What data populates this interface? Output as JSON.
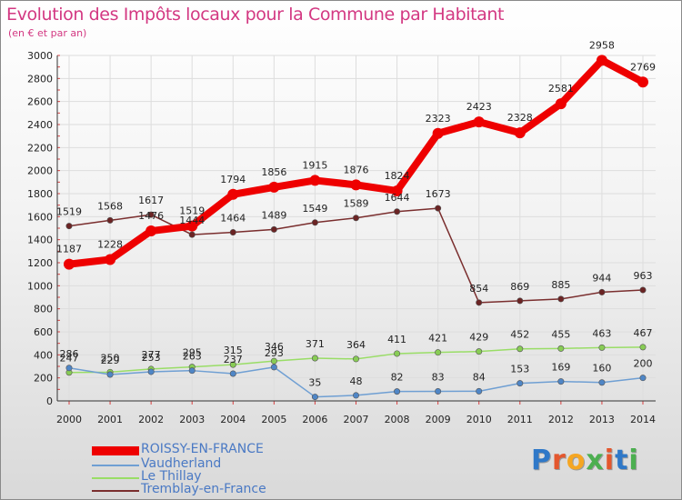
{
  "title": "Evolution des Impôts locaux pour la Commune par Habitant",
  "subtitle": "(en € et par an)",
  "logo_text": "Proxiti",
  "colors": {
    "roissy": "#ee0000",
    "vaudherland": "#6f9fd3",
    "thillay": "#99dd66",
    "tremblay": "#7a2e2e",
    "title": "#d33882"
  },
  "chart_data": {
    "type": "line",
    "title": "Evolution des Impôts locaux pour la Commune par Habitant",
    "subtitle": "(en € et par an)",
    "xlabel": "",
    "ylabel": "",
    "ylim": [
      0,
      3000
    ],
    "yticks": [
      0,
      200,
      400,
      600,
      800,
      1000,
      1200,
      1400,
      1600,
      1800,
      2000,
      2200,
      2400,
      2600,
      2800,
      3000
    ],
    "x": [
      "2000",
      "2001",
      "2002",
      "2003",
      "2004",
      "2005",
      "2006",
      "2007",
      "2008",
      "2009",
      "2010",
      "2011",
      "2012",
      "2013",
      "2014"
    ],
    "legend_position": "bottom-left",
    "series": [
      {
        "key": "roissy",
        "name": "ROISSY-EN-FRANCE",
        "values": [
          1187,
          1228,
          1476,
          1519,
          1794,
          1856,
          1915,
          1876,
          1824,
          2323,
          2423,
          2328,
          2581,
          2958,
          2769
        ]
      },
      {
        "key": "vaudherland",
        "name": "Vaudherland",
        "values": [
          286,
          229,
          253,
          263,
          237,
          293,
          35,
          48,
          82,
          83,
          84,
          153,
          169,
          160,
          200
        ]
      },
      {
        "key": "thillay",
        "name": "Le Thillay",
        "values": [
          247,
          250,
          277,
          295,
          315,
          346,
          371,
          364,
          411,
          421,
          429,
          452,
          455,
          463,
          467
        ]
      },
      {
        "key": "tremblay",
        "name": "Tremblay-en-France",
        "values": [
          1519,
          1568,
          1617,
          1444,
          1464,
          1489,
          1549,
          1589,
          1644,
          1673,
          854,
          869,
          885,
          944,
          963
        ]
      }
    ]
  }
}
